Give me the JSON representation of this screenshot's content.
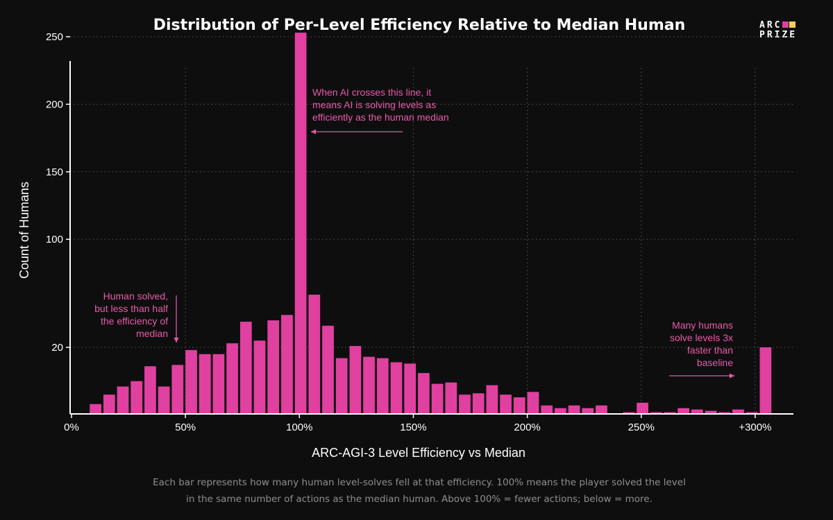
{
  "chart_data": {
    "type": "bar",
    "title": "Distribution of Per-Level Efficiency Relative to Median Human",
    "xlabel": "ARC-AGI-3 Level Efficiency vs Median",
    "ylabel": "Count of Humans",
    "x_ticks": [
      {
        "value": 0,
        "label": "0%"
      },
      {
        "value": 50,
        "label": "50%"
      },
      {
        "value": 100,
        "label": "100%"
      },
      {
        "value": 150,
        "label": "150%"
      },
      {
        "value": 200,
        "label": "200%"
      },
      {
        "value": 250,
        "label": "250%"
      },
      {
        "value": 300,
        "label": "+300%"
      }
    ],
    "y_ticks": [
      {
        "value": 20,
        "label": "20"
      },
      {
        "value": 100,
        "label": "100"
      },
      {
        "value": 150,
        "label": "150"
      },
      {
        "value": 200,
        "label": "200"
      },
      {
        "value": 250,
        "label": "250"
      }
    ],
    "xlim": [
      0,
      320
    ],
    "ylim": [
      -30,
      262
    ],
    "grid": true,
    "bar_color": "#e040a0",
    "bins": [
      {
        "x": 10,
        "y": -22
      },
      {
        "x": 16,
        "y": -15
      },
      {
        "x": 22,
        "y": -9
      },
      {
        "x": 28,
        "y": -5
      },
      {
        "x": 34,
        "y": 6
      },
      {
        "x": 40,
        "y": -9
      },
      {
        "x": 46,
        "y": 7
      },
      {
        "x": 52,
        "y": 18
      },
      {
        "x": 58,
        "y": 15
      },
      {
        "x": 64,
        "y": 15
      },
      {
        "x": 70,
        "y": 23
      },
      {
        "x": 76,
        "y": 39
      },
      {
        "x": 82,
        "y": 25
      },
      {
        "x": 88,
        "y": 40
      },
      {
        "x": 94,
        "y": 44
      },
      {
        "x": 100,
        "y": 253
      },
      {
        "x": 106,
        "y": 59
      },
      {
        "x": 112,
        "y": 36
      },
      {
        "x": 118,
        "y": 12
      },
      {
        "x": 124,
        "y": 21
      },
      {
        "x": 130,
        "y": 13
      },
      {
        "x": 136,
        "y": 12
      },
      {
        "x": 142,
        "y": 9
      },
      {
        "x": 148,
        "y": 8
      },
      {
        "x": 154,
        "y": 1
      },
      {
        "x": 160,
        "y": -7
      },
      {
        "x": 166,
        "y": -6
      },
      {
        "x": 172,
        "y": -15
      },
      {
        "x": 178,
        "y": -14
      },
      {
        "x": 184,
        "y": -8
      },
      {
        "x": 190,
        "y": -15
      },
      {
        "x": 196,
        "y": -17
      },
      {
        "x": 202,
        "y": -13
      },
      {
        "x": 208,
        "y": -23
      },
      {
        "x": 214,
        "y": -25
      },
      {
        "x": 220,
        "y": -23
      },
      {
        "x": 226,
        "y": -25
      },
      {
        "x": 232,
        "y": -23
      },
      {
        "x": 238,
        "y": -29
      },
      {
        "x": 244,
        "y": -28
      },
      {
        "x": 250,
        "y": -21
      },
      {
        "x": 256,
        "y": -28
      },
      {
        "x": 262,
        "y": -28
      },
      {
        "x": 268,
        "y": -25
      },
      {
        "x": 274,
        "y": -26
      },
      {
        "x": 280,
        "y": -27
      },
      {
        "x": 286,
        "y": -28
      },
      {
        "x": 292,
        "y": -26
      },
      {
        "x": 298,
        "y": -28
      },
      {
        "x": 304,
        "y": 20
      }
    ],
    "annotations": [
      {
        "id": "median",
        "text": [
          "When AI crosses this line, it",
          "means AI is solving levels as",
          "efficiently as the human median"
        ]
      },
      {
        "id": "half",
        "text": [
          "Human solved,",
          "but less than half",
          "the efficiency of",
          "median"
        ]
      },
      {
        "id": "fast",
        "text": [
          "Many humans",
          "solve levels 3x",
          "faster than",
          "baseline"
        ]
      }
    ],
    "annotation_color": "#e85aa8"
  },
  "logo": {
    "line1": "ARC",
    "line2": "PRIZE",
    "colors": [
      "#e040a0",
      "#f6d34a"
    ]
  },
  "footnote": [
    "Each bar represents how many human level-solves fell at that efficiency. 100% means the player solved the level",
    "in the same number of actions as the median human. Above 100% = fewer actions; below = more."
  ]
}
